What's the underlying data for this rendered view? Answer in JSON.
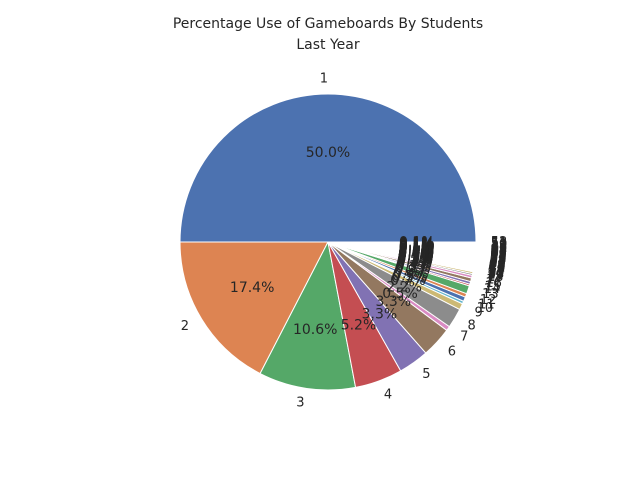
{
  "chart_data": {
    "type": "pie",
    "title": "Percentage Use of Gameboards By Students\nLast Year",
    "title_lines": [
      "Percentage Use of Gameboards By Students",
      "Last Year"
    ],
    "categories": [
      "1",
      "2",
      "3",
      "4",
      "5",
      "6",
      "7",
      "8",
      "9",
      "10",
      "11",
      "12",
      "13",
      "14",
      "15",
      "16",
      "17",
      "18",
      "19",
      "20",
      "21",
      "22",
      "23",
      "24",
      "25",
      "26",
      "27",
      "28",
      "29",
      "30",
      "31",
      "32",
      "33",
      "34",
      "35",
      "36",
      "37",
      "38",
      "39",
      "40",
      "41",
      "42",
      "43",
      "44",
      "45",
      "46",
      "47",
      "48",
      "49",
      "50",
      "51",
      "52"
    ],
    "values": [
      51.1,
      17.8,
      10.8,
      5.3,
      3.4,
      3.4,
      0.5,
      2.2,
      0.7,
      0.3,
      0.5,
      0.4,
      0.9,
      0.2,
      0.3,
      0.4,
      0.3,
      0.2,
      0.2,
      0.1,
      0.1,
      0.1,
      0.1,
      0.1,
      0.1,
      0.1,
      0.1,
      0.1,
      0.1,
      0.1,
      0.1,
      0.1,
      0.1,
      0.1,
      0.1,
      0.1,
      0.1,
      0.1,
      0.1,
      0.1,
      0.1,
      0.1,
      0.1,
      0.1,
      0.1,
      0.1,
      0.1,
      0.1,
      0.1,
      0.1,
      0.1,
      0.1
    ],
    "colors": [
      "#4c72b0",
      "#dd8452",
      "#55a868",
      "#c44e52",
      "#8172b3",
      "#937860",
      "#da8bc3",
      "#8c8c8c",
      "#ccb974",
      "#64b5cd"
    ],
    "start_angle_deg": 0,
    "direction": "counterclockwise",
    "autopct_format": "%1.1f%%"
  }
}
